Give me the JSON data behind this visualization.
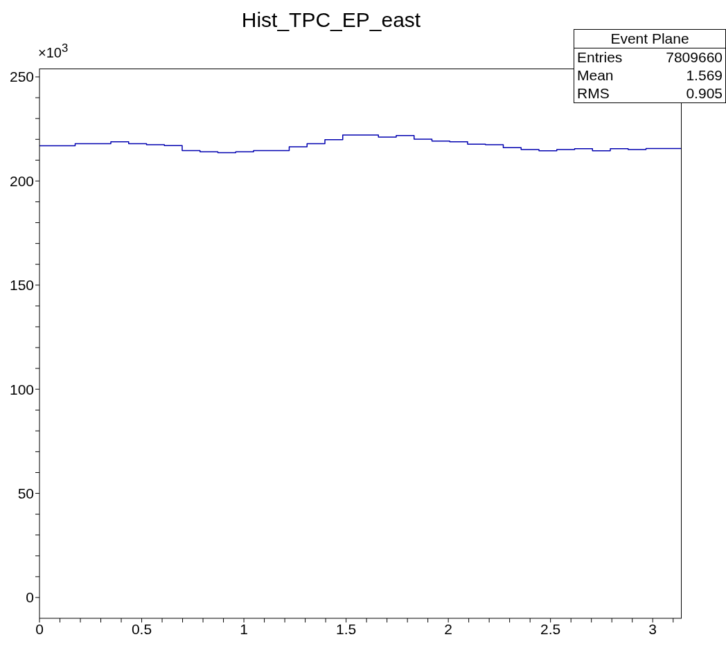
{
  "chart_data": {
    "type": "histogram",
    "title": "Hist_TPC_EP_east",
    "annotations": [
      "×10$^{3}$",
      "Event Plane",
      "Entries",
      "7809660",
      "Mean",
      "1.569",
      "RMS",
      "0.905"
    ],
    "bins": [
      0,
      0.0873,
      0.1745,
      0.2618,
      0.3491,
      0.4363,
      0.5236,
      0.6109,
      0.6981,
      0.7854,
      0.8727,
      0.9599,
      1.0472,
      1.1345,
      1.2217,
      1.309,
      1.3963,
      1.4835,
      1.5708,
      1.6581,
      1.7453,
      1.8326,
      1.9199,
      2.0071,
      2.0944,
      2.1817,
      2.2689,
      2.3562,
      2.4435,
      2.5307,
      2.618,
      2.7053,
      2.7925,
      2.8798,
      2.9671,
      3.0543,
      3.1416
    ],
    "values": [
      216.9,
      216.9,
      217.9,
      217.9,
      218.8,
      217.9,
      217.4,
      217.0,
      214.6,
      214.0,
      213.6,
      214.0,
      214.6,
      214.6,
      216.4,
      217.9,
      219.8,
      222.1,
      222.1,
      221.1,
      221.8,
      220.1,
      219.2,
      218.8,
      217.7,
      217.4,
      216.0,
      215.1,
      214.5,
      215.1,
      215.5,
      214.5,
      215.5,
      215.1,
      215.6,
      215.6
    ],
    "color": "#0000b0",
    "xlim": [
      0,
      3.1416
    ],
    "ylim": [
      -10,
      254
    ],
    "xticks": [
      0,
      {
        "value": 0.1,
        "label": null
      },
      {
        "value": 0.2,
        "label": null
      },
      {
        "value": 0.3,
        "label": null
      },
      {
        "value": 0.4,
        "label": null
      },
      0.5,
      {
        "value": 0.6,
        "label": null
      },
      {
        "value": 0.7,
        "label": null
      },
      {
        "value": 0.8,
        "label": null
      },
      {
        "value": 0.9,
        "label": null
      },
      1,
      {
        "value": 1.1,
        "label": null
      },
      {
        "value": 1.2,
        "label": null
      },
      {
        "value": 1.3,
        "label": null
      },
      {
        "value": 1.4,
        "label": null
      },
      1.5,
      {
        "value": 1.6,
        "label": null
      },
      {
        "value": 1.7,
        "label": null
      },
      {
        "value": 1.8,
        "label": null
      },
      {
        "value": 1.9,
        "label": null
      },
      2,
      {
        "value": 2.1,
        "label": null
      },
      {
        "value": 2.2,
        "label": null
      },
      {
        "value": 2.3,
        "label": null
      },
      {
        "value": 2.4,
        "label": null
      },
      2.5,
      {
        "value": 2.6,
        "label": null
      },
      {
        "value": 2.7,
        "label": null
      },
      {
        "value": 2.8,
        "label": null
      },
      {
        "value": 2.9,
        "label": null
      },
      3,
      {
        "value": 3.1,
        "label": null
      }
    ],
    "yticks": [
      0,
      {
        "value": 10,
        "label": null
      },
      {
        "value": 20,
        "label": null
      },
      {
        "value": 30,
        "label": null
      },
      {
        "value": 40,
        "label": null
      },
      50,
      {
        "value": 60,
        "label": null
      },
      {
        "value": 70,
        "label": null
      },
      {
        "value": 80,
        "label": null
      },
      {
        "value": 90,
        "label": null
      },
      100,
      {
        "value": 110,
        "label": null
      },
      {
        "value": 120,
        "label": null
      },
      {
        "value": 130,
        "label": null
      },
      {
        "value": 140,
        "label": null
      },
      150,
      {
        "value": 160,
        "label": null
      },
      {
        "value": 170,
        "label": null
      },
      {
        "value": 180,
        "label": null
      },
      {
        "value": 190,
        "label": null
      },
      200,
      {
        "value": 210,
        "label": null
      },
      {
        "value": 220,
        "label": null
      },
      {
        "value": 230,
        "label": null
      },
      {
        "value": 240,
        "label": null
      },
      250
    ]
  }
}
